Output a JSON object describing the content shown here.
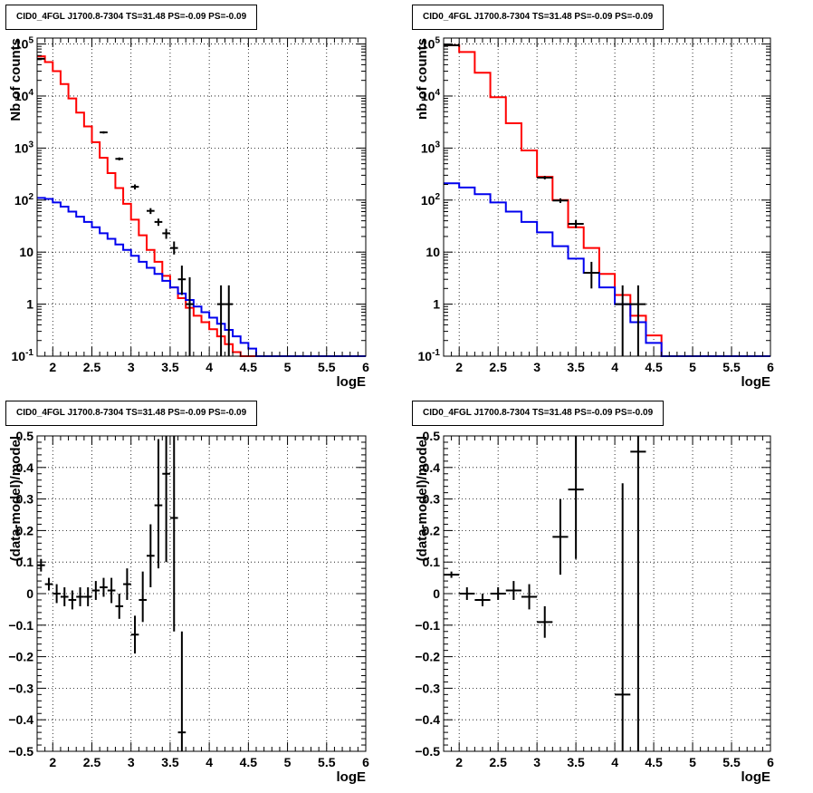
{
  "colors": {
    "data": "#000000",
    "total_model": "#ff0000",
    "source_model": "#0000ee"
  },
  "chart_data": [
    {
      "id": "counts_left",
      "type": "line",
      "title": "CID0_4FGL J1700.8-7304 TS=31.48 PS=-0.09 PS=-0.09",
      "xlabel": "logE",
      "ylabel": "Nb of counts",
      "xlim": [
        1.8,
        6.0
      ],
      "ylim": [
        0.1,
        130000
      ],
      "yscale": "log",
      "grid": true,
      "xticks": [
        2,
        2.5,
        3,
        3.5,
        4,
        4.5,
        5,
        5.5,
        6
      ],
      "xtick_labels": [
        "2",
        "2.5",
        "3",
        "3.5",
        "4",
        "4.5",
        "5",
        "5.5",
        "6"
      ],
      "yticks": [
        0.1,
        1,
        10,
        100,
        1000,
        10000,
        100000
      ],
      "ytick_labels": [
        "10^-1",
        "1",
        "10",
        "10^2",
        "10^3",
        "10^4",
        "10^5"
      ],
      "series": [
        {
          "color": "#ff0000",
          "edges": [
            1.8,
            1.9,
            2.0,
            2.1,
            2.2,
            2.3,
            2.4,
            2.5,
            2.6,
            2.7,
            2.8,
            2.9,
            3.0,
            3.1,
            3.2,
            3.3,
            3.4,
            3.5,
            3.6,
            3.7,
            3.8,
            3.9,
            4.0,
            4.1,
            4.2,
            4.3,
            4.4,
            4.5,
            4.6,
            4.7,
            4.8,
            4.9,
            5.0,
            5.1,
            5.2,
            5.3,
            5.4,
            5.5,
            5.6,
            5.7,
            5.8,
            5.9,
            6.0
          ],
          "values": [
            58000,
            45000,
            30000,
            17000,
            9000,
            4800,
            2600,
            1300,
            650,
            330,
            170,
            85,
            42,
            21,
            11,
            6.5,
            3.5,
            2.1,
            1.3,
            0.85,
            0.6,
            0.45,
            0.33,
            0.24,
            0.17,
            0.12,
            0.1,
            0.1,
            0.1,
            0.1,
            0.1,
            0.1,
            0.1,
            0.1,
            0.1,
            0.1,
            0.1,
            0.1,
            0.1,
            0.1,
            0.1,
            0.1
          ]
        },
        {
          "color": "#0000ee",
          "edges": [
            1.8,
            1.9,
            2.0,
            2.1,
            2.2,
            2.3,
            2.4,
            2.5,
            2.6,
            2.7,
            2.8,
            2.9,
            3.0,
            3.1,
            3.2,
            3.3,
            3.4,
            3.5,
            3.6,
            3.7,
            3.8,
            3.9,
            4.0,
            4.1,
            4.2,
            4.3,
            4.4,
            4.5,
            4.6,
            4.7,
            4.8,
            4.9,
            5.0,
            5.1,
            5.2,
            5.3,
            5.4,
            5.5,
            5.6,
            5.7,
            5.8,
            5.9,
            6.0
          ],
          "values": [
            110,
            105,
            90,
            75,
            60,
            48,
            38,
            30,
            23,
            18,
            14,
            11,
            8.5,
            6.5,
            5,
            3.8,
            2.8,
            2.1,
            1.6,
            1.2,
            0.9,
            0.7,
            0.55,
            0.42,
            0.32,
            0.24,
            0.18,
            0.14,
            0.1,
            0.1,
            0.1,
            0.1,
            0.1,
            0.1,
            0.1,
            0.1,
            0.1,
            0.1,
            0.1,
            0.1,
            0.1,
            0.1
          ]
        }
      ],
      "points": [
        {
          "x": 1.85,
          "y": 52000,
          "lo": 50000,
          "hi": 54000,
          "xerr": 0.05
        },
        {
          "x": 2.65,
          "y": 2000,
          "lo": 1900,
          "hi": 2100,
          "xerr": 0.05
        },
        {
          "x": 2.85,
          "y": 620,
          "lo": 580,
          "hi": 660,
          "xerr": 0.05
        },
        {
          "x": 3.05,
          "y": 180,
          "lo": 160,
          "hi": 200,
          "xerr": 0.05
        },
        {
          "x": 3.25,
          "y": 62,
          "lo": 54,
          "hi": 70,
          "xerr": 0.05
        },
        {
          "x": 3.35,
          "y": 38,
          "lo": 32,
          "hi": 44,
          "xerr": 0.05
        },
        {
          "x": 3.45,
          "y": 23,
          "lo": 18,
          "hi": 28,
          "xerr": 0.05
        },
        {
          "x": 3.55,
          "y": 12,
          "lo": 9,
          "hi": 16,
          "xerr": 0.05
        },
        {
          "x": 3.65,
          "y": 3,
          "lo": 1.5,
          "hi": 5.5,
          "xerr": 0.05
        },
        {
          "x": 3.75,
          "y": 1,
          "lo": 0.1,
          "hi": 3.3,
          "xerr": 0.05
        },
        {
          "x": 4.15,
          "y": 1,
          "lo": 0.1,
          "hi": 2.3,
          "xerr": 0.05
        },
        {
          "x": 4.25,
          "y": 1,
          "lo": 0.1,
          "hi": 2.3,
          "xerr": 0.05
        }
      ]
    },
    {
      "id": "counts_right",
      "type": "line",
      "title": "CID0_4FGL J1700.8-7304 TS=31.48 PS=-0.09 PS=-0.09",
      "xlabel": "logE",
      "ylabel": "nb of counts",
      "xlim": [
        1.8,
        6.0
      ],
      "ylim": [
        0.1,
        130000
      ],
      "yscale": "log",
      "grid": true,
      "xticks": [
        2,
        2.5,
        3,
        3.5,
        4,
        4.5,
        5,
        5.5,
        6
      ],
      "xtick_labels": [
        "2",
        "2.5",
        "3",
        "3.5",
        "4",
        "4.5",
        "5",
        "5.5",
        "6"
      ],
      "yticks": [
        0.1,
        1,
        10,
        100,
        1000,
        10000,
        100000
      ],
      "ytick_labels": [
        "10^-1",
        "1",
        "10",
        "10^2",
        "10^3",
        "10^4",
        "10^5"
      ],
      "series": [
        {
          "color": "#ff0000",
          "edges": [
            1.8,
            2.0,
            2.2,
            2.4,
            2.6,
            2.8,
            3.0,
            3.2,
            3.4,
            3.6,
            3.8,
            4.0,
            4.2,
            4.4,
            4.6,
            4.8,
            5.0,
            5.2,
            5.4,
            5.6,
            5.8,
            6.0
          ],
          "values": [
            95000,
            70000,
            28000,
            9500,
            3000,
            900,
            280,
            100,
            30,
            12,
            3.8,
            1.5,
            0.6,
            0.25,
            0.1,
            0.1,
            0.1,
            0.1,
            0.1,
            0.1,
            0.1
          ]
        },
        {
          "color": "#0000ee",
          "edges": [
            1.8,
            2.0,
            2.2,
            2.4,
            2.6,
            2.8,
            3.0,
            3.2,
            3.4,
            3.6,
            3.8,
            4.0,
            4.2,
            4.4,
            4.6,
            4.8,
            5.0,
            5.2,
            5.4,
            5.6,
            5.8,
            6.0
          ],
          "values": [
            210,
            175,
            130,
            90,
            60,
            38,
            24,
            13,
            7.5,
            4,
            2.1,
            1,
            0.45,
            0.18,
            0.1,
            0.1,
            0.1,
            0.1,
            0.1,
            0.1,
            0.1
          ]
        }
      ],
      "points": [
        {
          "x": 1.9,
          "y": 95000,
          "lo": 93000,
          "hi": 97000,
          "xerr": 0.1
        },
        {
          "x": 3.1,
          "y": 270,
          "lo": 250,
          "hi": 290,
          "xerr": 0.1
        },
        {
          "x": 3.3,
          "y": 98,
          "lo": 88,
          "hi": 108,
          "xerr": 0.1
        },
        {
          "x": 3.5,
          "y": 35,
          "lo": 29,
          "hi": 41,
          "xerr": 0.1
        },
        {
          "x": 3.7,
          "y": 4,
          "lo": 2,
          "hi": 6.5,
          "xerr": 0.1
        },
        {
          "x": 4.1,
          "y": 1,
          "lo": 0.1,
          "hi": 2.3,
          "xerr": 0.1
        },
        {
          "x": 4.3,
          "y": 1,
          "lo": 0.1,
          "hi": 2.3,
          "xerr": 0.1
        }
      ]
    },
    {
      "id": "resid_left",
      "type": "scatter",
      "title": "CID0_4FGL J1700.8-7304 TS=31.48 PS=-0.09 PS=-0.09",
      "xlabel": "logE",
      "ylabel": "(data-model)/model",
      "xlim": [
        1.8,
        6.0
      ],
      "ylim": [
        -0.5,
        0.5
      ],
      "yscale": "linear",
      "grid": true,
      "xticks": [
        2,
        2.5,
        3,
        3.5,
        4,
        4.5,
        5,
        5.5,
        6
      ],
      "xtick_labels": [
        "2",
        "2.5",
        "3",
        "3.5",
        "4",
        "4.5",
        "5",
        "5.5",
        "6"
      ],
      "yticks": [
        -0.5,
        -0.4,
        -0.3,
        -0.2,
        -0.1,
        0,
        0.1,
        0.2,
        0.3,
        0.4,
        0.5
      ],
      "ytick_labels": [
        "−0.5",
        "−0.4",
        "−0.3",
        "−0.2",
        "−0.1",
        "0",
        "0.1",
        "0.2",
        "0.3",
        "0.4",
        "0.5"
      ],
      "series": [],
      "points": [
        {
          "x": 1.85,
          "y": 0.09,
          "lo": 0.07,
          "hi": 0.11,
          "xerr": 0.05
        },
        {
          "x": 1.95,
          "y": 0.03,
          "lo": 0.01,
          "hi": 0.05,
          "xerr": 0.05
        },
        {
          "x": 2.05,
          "y": 0.0,
          "lo": -0.03,
          "hi": 0.03,
          "xerr": 0.05
        },
        {
          "x": 2.15,
          "y": -0.01,
          "lo": -0.04,
          "hi": 0.02,
          "xerr": 0.05
        },
        {
          "x": 2.25,
          "y": -0.02,
          "lo": -0.05,
          "hi": 0.01,
          "xerr": 0.05
        },
        {
          "x": 2.35,
          "y": -0.01,
          "lo": -0.04,
          "hi": 0.02,
          "xerr": 0.05
        },
        {
          "x": 2.45,
          "y": -0.01,
          "lo": -0.04,
          "hi": 0.02,
          "xerr": 0.05
        },
        {
          "x": 2.55,
          "y": 0.01,
          "lo": -0.02,
          "hi": 0.04,
          "xerr": 0.05
        },
        {
          "x": 2.65,
          "y": 0.02,
          "lo": -0.01,
          "hi": 0.05,
          "xerr": 0.05
        },
        {
          "x": 2.75,
          "y": 0.01,
          "lo": -0.03,
          "hi": 0.05,
          "xerr": 0.05
        },
        {
          "x": 2.85,
          "y": -0.04,
          "lo": -0.08,
          "hi": 0.0,
          "xerr": 0.05
        },
        {
          "x": 2.95,
          "y": 0.03,
          "lo": -0.02,
          "hi": 0.08,
          "xerr": 0.05
        },
        {
          "x": 3.05,
          "y": -0.13,
          "lo": -0.19,
          "hi": -0.07,
          "xerr": 0.05
        },
        {
          "x": 3.15,
          "y": -0.02,
          "lo": -0.09,
          "hi": 0.07,
          "xerr": 0.05
        },
        {
          "x": 3.25,
          "y": 0.12,
          "lo": 0.02,
          "hi": 0.22,
          "xerr": 0.05
        },
        {
          "x": 3.35,
          "y": 0.28,
          "lo": 0.08,
          "hi": 0.49,
          "xerr": 0.05
        },
        {
          "x": 3.45,
          "y": 0.38,
          "lo": 0.1,
          "hi": 0.5,
          "xerr": 0.05
        },
        {
          "x": 3.55,
          "y": 0.24,
          "lo": -0.12,
          "hi": 0.5,
          "xerr": 0.05
        },
        {
          "x": 3.65,
          "y": -0.44,
          "lo": -0.5,
          "hi": -0.12,
          "xerr": 0.05
        }
      ]
    },
    {
      "id": "resid_right",
      "type": "scatter",
      "title": "CID0_4FGL J1700.8-7304 TS=31.48 PS=-0.09 PS=-0.09",
      "xlabel": "logE",
      "ylabel": "(data-model)/model",
      "xlim": [
        1.8,
        6.0
      ],
      "ylim": [
        -0.5,
        0.5
      ],
      "yscale": "linear",
      "grid": true,
      "xticks": [
        2,
        2.5,
        3,
        3.5,
        4,
        4.5,
        5,
        5.5,
        6
      ],
      "xtick_labels": [
        "2",
        "2.5",
        "3",
        "3.5",
        "4",
        "4.5",
        "5",
        "5.5",
        "6"
      ],
      "yticks": [
        -0.5,
        -0.4,
        -0.3,
        -0.2,
        -0.1,
        0,
        0.1,
        0.2,
        0.3,
        0.4,
        0.5
      ],
      "ytick_labels": [
        "−0.5",
        "−0.4",
        "−0.3",
        "−0.2",
        "−0.1",
        "0",
        "0.1",
        "0.2",
        "0.3",
        "0.4",
        "0.5"
      ],
      "series": [],
      "points": [
        {
          "x": 1.9,
          "y": 0.06,
          "lo": 0.05,
          "hi": 0.07,
          "xerr": 0.1
        },
        {
          "x": 2.1,
          "y": 0.0,
          "lo": -0.02,
          "hi": 0.02,
          "xerr": 0.1
        },
        {
          "x": 2.3,
          "y": -0.02,
          "lo": -0.04,
          "hi": 0.0,
          "xerr": 0.1
        },
        {
          "x": 2.5,
          "y": 0.0,
          "lo": -0.02,
          "hi": 0.02,
          "xerr": 0.1
        },
        {
          "x": 2.7,
          "y": 0.01,
          "lo": -0.02,
          "hi": 0.04,
          "xerr": 0.1
        },
        {
          "x": 2.9,
          "y": -0.01,
          "lo": -0.05,
          "hi": 0.03,
          "xerr": 0.1
        },
        {
          "x": 3.1,
          "y": -0.09,
          "lo": -0.14,
          "hi": -0.04,
          "xerr": 0.1
        },
        {
          "x": 3.3,
          "y": 0.18,
          "lo": 0.06,
          "hi": 0.3,
          "xerr": 0.1
        },
        {
          "x": 3.5,
          "y": 0.33,
          "lo": 0.11,
          "hi": 0.5,
          "xerr": 0.1
        },
        {
          "x": 4.1,
          "y": -0.32,
          "lo": -0.5,
          "hi": 0.35,
          "xerr": 0.1
        },
        {
          "x": 4.3,
          "y": 0.45,
          "lo": -0.5,
          "hi": 0.5,
          "xerr": 0.1
        }
      ]
    }
  ]
}
